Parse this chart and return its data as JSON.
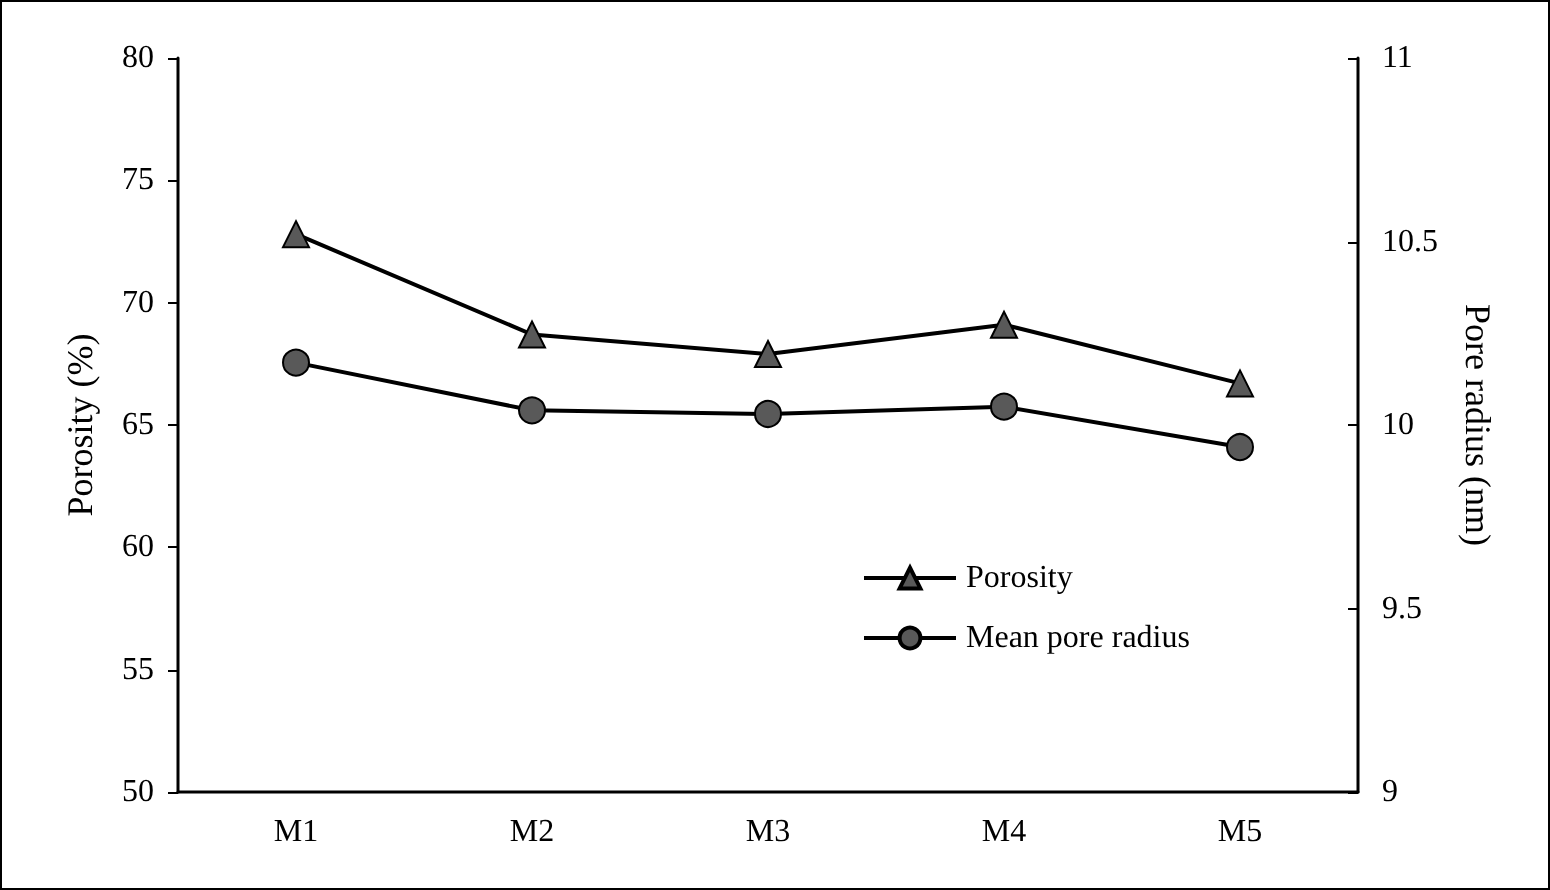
{
  "chart_data": {
    "type": "line",
    "categories": [
      "M1",
      "M2",
      "M3",
      "M4",
      "M5"
    ],
    "ylabel": "Porosity (%)",
    "y2label": "Pore radius (nm)",
    "series": [
      {
        "name": "Porosity",
        "color": "#000000",
        "marker": "triangle",
        "values": [
          72.8,
          68.7,
          67.9,
          69.1,
          66.7
        ]
      },
      {
        "name": "Mean pore radius",
        "color": "#000000",
        "marker": "circle",
        "axis": "y2",
        "values": [
          10.17,
          10.04,
          10.03,
          10.05,
          9.94
        ]
      }
    ],
    "ylim": [
      50,
      80
    ],
    "yticks": [
      50,
      55,
      60,
      65,
      70,
      75,
      80
    ],
    "y2lim": [
      9,
      11
    ],
    "y2ticks": [
      9,
      9.5,
      10,
      10.5,
      11
    ],
    "legend": "right",
    "grid": false,
    "line_style": "solid"
  }
}
